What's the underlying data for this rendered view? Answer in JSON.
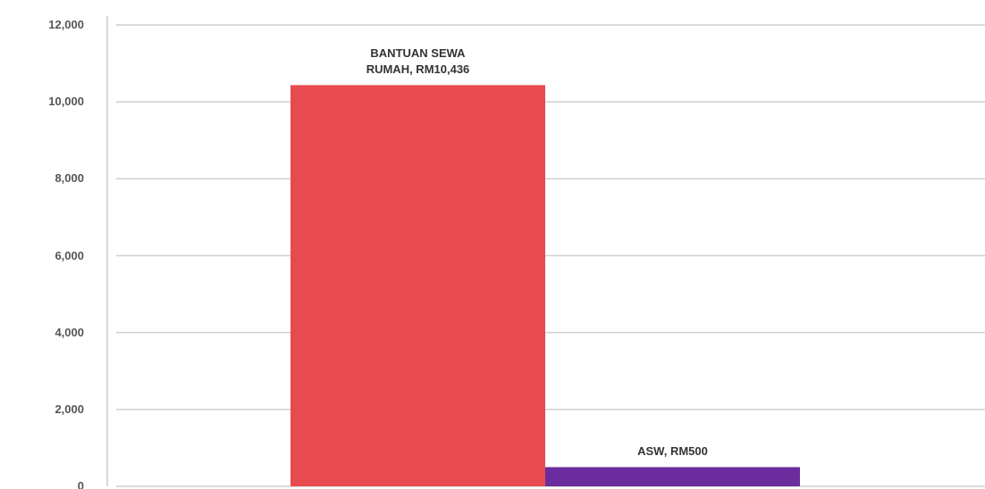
{
  "chart_data": {
    "type": "bar",
    "values": [
      10436,
      500
    ],
    "value_labels": [
      "BANTUAN SEWA RUMAH, RM10,436",
      "ASW, RM500"
    ],
    "colors": [
      "#e84b4f",
      "#6b2d9e"
    ],
    "ylim": [
      0,
      12000
    ],
    "yticks": [
      0,
      {
        "value": 2000,
        "label": "2,000"
      },
      {
        "value": 4000,
        "label": "4,000"
      },
      {
        "value": 6000,
        "label": "6,000"
      },
      {
        "value": 8000,
        "label": "8,000"
      },
      {
        "value": 10000,
        "label": "10,000"
      },
      {
        "value": 12000,
        "label": "12,000"
      }
    ],
    "grid": true
  }
}
